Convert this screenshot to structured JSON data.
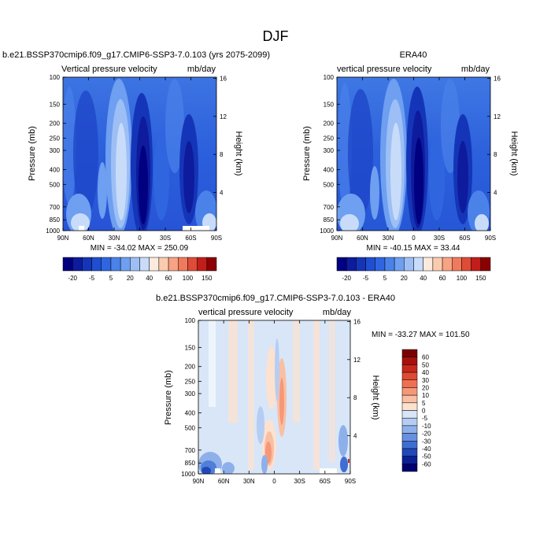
{
  "figure": {
    "main_title": "DJF"
  },
  "chart_data": [
    {
      "type": "heatmap",
      "title": "b.e21.BSSP370cmip6.f09_g17.CMIP6-SSP3-7.0.103 (yrs 2075-2099)",
      "left_label": "Vertical pressure velocity",
      "right_label": "mb/day",
      "ylabel": "Pressure (mb)",
      "y2label": "Height (km)",
      "x_ticks": [
        "90N",
        "60N",
        "30N",
        "0",
        "30S",
        "60S",
        "90S"
      ],
      "y_ticks": [
        "100",
        "150",
        "200",
        "250",
        "300",
        "400",
        "500",
        "700",
        "850",
        "1000"
      ],
      "y2_ticks": [
        "16",
        "12",
        "8",
        "4"
      ],
      "stats": "MIN = -34.02  MAX = 250.09",
      "colorbar_labels": [
        "-20",
        "-5",
        "5",
        "20",
        "40",
        "60",
        "100",
        "150"
      ]
    },
    {
      "type": "heatmap",
      "title": "ERA40",
      "left_label": "vertical pressure velocity",
      "right_label": "mb/day",
      "ylabel": "Pressure (mb)",
      "y2label": "Height (km)",
      "x_ticks": [
        "90N",
        "60N",
        "30N",
        "0",
        "30S",
        "60S",
        "90S"
      ],
      "y_ticks": [
        "100",
        "150",
        "200",
        "250",
        "300",
        "400",
        "500",
        "700",
        "850",
        "1000"
      ],
      "y2_ticks": [
        "16",
        "12",
        "8",
        "4"
      ],
      "stats": "MIN = -40.15  MAX = 33.44",
      "colorbar_labels": [
        "-20",
        "-5",
        "5",
        "20",
        "40",
        "60",
        "100",
        "150"
      ]
    },
    {
      "type": "heatmap",
      "title": "b.e21.BSSP370cmip6.f09_g17.CMIP6-SSP3-7.0.103 - ERA40",
      "left_label": "vertical pressure velocity",
      "right_label": "mb/day",
      "ylabel": "Pressure (mb)",
      "y2label": "Height (km)",
      "x_ticks": [
        "90N",
        "60N",
        "30N",
        "0",
        "30S",
        "60S",
        "90S"
      ],
      "y_ticks": [
        "100",
        "150",
        "200",
        "250",
        "300",
        "400",
        "500",
        "700",
        "850",
        "1000"
      ],
      "y2_ticks": [
        "16",
        "12",
        "8",
        "4"
      ],
      "stats": "MIN = -33.27  MAX = 101.50",
      "colorbar_labels": [
        "60",
        "50",
        "40",
        "30",
        "20",
        "10",
        "5",
        "0",
        "-5",
        "-10",
        "-20",
        "-30",
        "-40",
        "-50",
        "-60"
      ]
    }
  ],
  "colors": {
    "panel_scale": [
      "#000080",
      "#0d1b9c",
      "#1535b8",
      "#1f4fd0",
      "#2f66e0",
      "#4a82ea",
      "#6e9ff0",
      "#9dbff5",
      "#c8dcfa",
      "#fdeade",
      "#fbcbb0",
      "#f7a384",
      "#f07a5c",
      "#de4c37",
      "#c21d1a",
      "#8b0000"
    ],
    "diff_scale": [
      "#7a0000",
      "#a8100c",
      "#c8281c",
      "#de4a33",
      "#ef7050",
      "#f69878",
      "#f9bfa2",
      "#fde1cf",
      "#d8e6f8",
      "#b5cdf2",
      "#8eb0ea",
      "#6790df",
      "#3f6ed2",
      "#2048b8",
      "#0b1f94",
      "#000070"
    ]
  }
}
